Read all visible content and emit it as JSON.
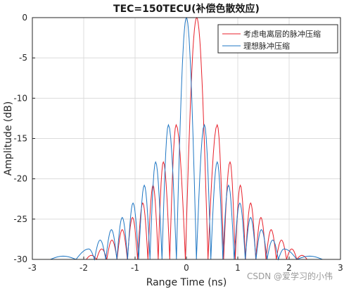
{
  "chart_data": {
    "type": "line",
    "title": "TEC=150TECU(补偿色散效应)",
    "xlabel": "Range Time (ns)",
    "ylabel": "Amplitude (dB)",
    "xlim": [
      -3,
      3
    ],
    "ylim": [
      -30,
      0
    ],
    "xticks": [
      "-3",
      "-2",
      "-1",
      "0",
      "1",
      "2",
      "3"
    ],
    "yticks": [
      "0",
      "-5",
      "-10",
      "-15",
      "-20",
      "-25",
      "-30"
    ],
    "grid": true,
    "legend_position": "top-right",
    "series": [
      {
        "name": "考虑电离层的脉冲压缩",
        "color": "#e8212b",
        "peak_time": 0.2,
        "sidelobe_peaks": [
          {
            "x": 0.6,
            "y": -13.3
          },
          {
            "x": 0.85,
            "y": -17.9
          },
          {
            "x": 1.05,
            "y": -20.8
          },
          {
            "x": 1.25,
            "y": -23.0
          },
          {
            "x": 1.45,
            "y": -24.8
          },
          {
            "x": 1.65,
            "y": -26.3
          },
          {
            "x": 1.85,
            "y": -27.6
          },
          {
            "x": 2.05,
            "y": -28.7
          },
          {
            "x": 2.25,
            "y": -29.5
          }
        ]
      },
      {
        "name": "理想脉冲压缩",
        "color": "#1f77c4",
        "peak_time": 0.0,
        "sidelobe_peaks": [
          {
            "x": 0.35,
            "y": -13.3
          },
          {
            "x": 0.6,
            "y": -17.9
          },
          {
            "x": 0.82,
            "y": -20.8
          },
          {
            "x": 1.04,
            "y": -23.0
          },
          {
            "x": 1.25,
            "y": -24.8
          },
          {
            "x": 1.46,
            "y": -26.3
          },
          {
            "x": 1.68,
            "y": -27.6
          },
          {
            "x": 1.9,
            "y": -28.7
          },
          {
            "x": 2.4,
            "y": -29.6
          }
        ]
      }
    ]
  },
  "watermark": "CSDN @爱学习的小伟"
}
